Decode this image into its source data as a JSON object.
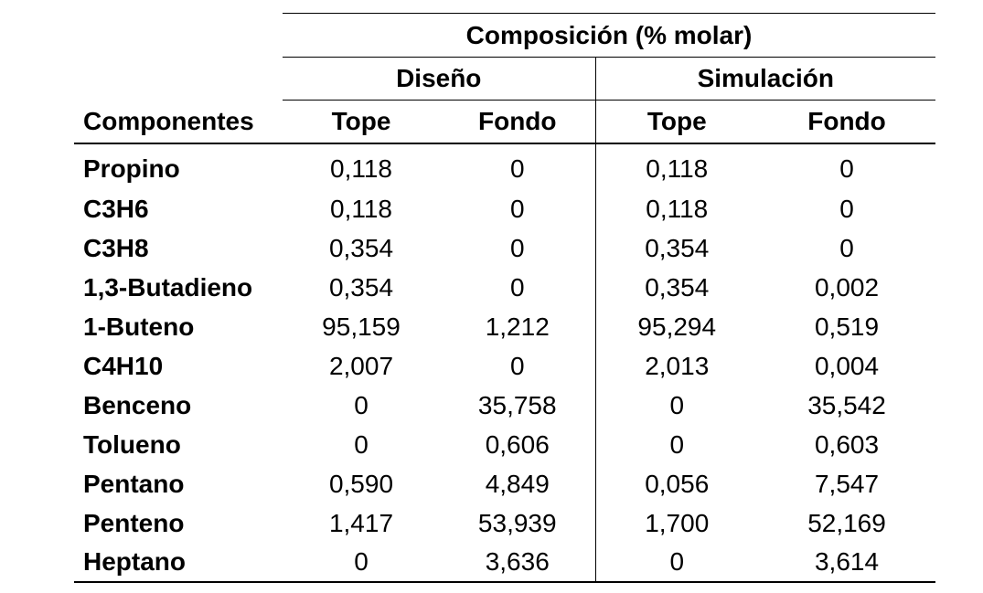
{
  "table": {
    "group_header": "Composición (% molar)",
    "subgroups": [
      "Diseño",
      "Simulación"
    ],
    "columns": [
      "Componentes",
      "Tope",
      "Fondo",
      "Tope",
      "Fondo"
    ],
    "rows": [
      {
        "name": "Propino",
        "values": [
          "0,118",
          "0",
          "0,118",
          "0"
        ]
      },
      {
        "name": "C3H6",
        "values": [
          "0,118",
          "0",
          "0,118",
          "0"
        ]
      },
      {
        "name": "C3H8",
        "values": [
          "0,354",
          "0",
          "0,354",
          "0"
        ]
      },
      {
        "name": "1,3-Butadieno",
        "values": [
          "0,354",
          "0",
          "0,354",
          "0,002"
        ]
      },
      {
        "name": "1-Buteno",
        "values": [
          "95,159",
          "1,212",
          "95,294",
          "0,519"
        ]
      },
      {
        "name": "C4H10",
        "values": [
          "2,007",
          "0",
          "2,013",
          "0,004"
        ]
      },
      {
        "name": "Benceno",
        "values": [
          "0",
          "35,758",
          "0",
          "35,542"
        ]
      },
      {
        "name": "Tolueno",
        "values": [
          "0",
          "0,606",
          "0",
          "0,603"
        ]
      },
      {
        "name": "Pentano",
        "values": [
          "0,590",
          "4,849",
          "0,056",
          "7,547"
        ]
      },
      {
        "name": "Penteno",
        "values": [
          "1,417",
          "53,939",
          "1,700",
          "52,169"
        ]
      },
      {
        "name": "Heptano",
        "values": [
          "0",
          "3,636",
          "0",
          "3,614"
        ]
      }
    ]
  }
}
